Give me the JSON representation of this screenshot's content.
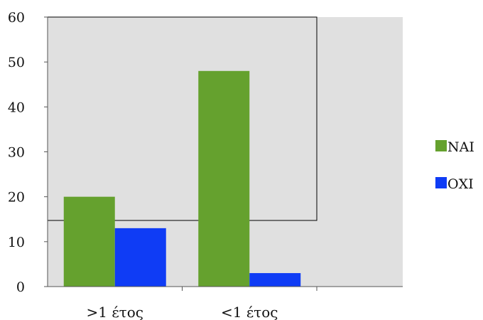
{
  "chart_data": {
    "type": "bar",
    "categories": [
      ">1 έτος",
      "<1 έτος"
    ],
    "series": [
      {
        "name": "ΝΑΙ",
        "values": [
          20,
          48
        ],
        "color": "#65a12e"
      },
      {
        "name": "ΟΧΙ",
        "values": [
          13,
          3
        ],
        "color": "#0f3cf5"
      }
    ],
    "ylim": [
      0,
      60
    ],
    "yticks": [
      0,
      10,
      20,
      30,
      40,
      50,
      60
    ],
    "title": "",
    "xlabel": "",
    "ylabel": "",
    "legend_position": "right",
    "plot_background": "#e0e0e0",
    "grid": false
  }
}
